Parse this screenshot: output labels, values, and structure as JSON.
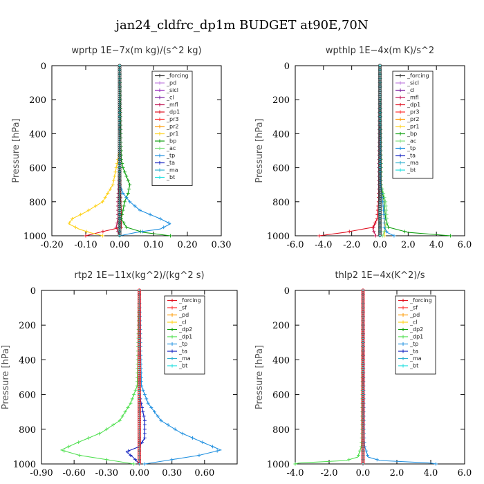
{
  "figure_title": "jan24_cldfrc_dp1m  BUDGET at90E,70N",
  "chart_data": [
    {
      "type": "line",
      "title": "wprtp  1E−7x(m kg)/(s^2 kg)",
      "ylabel": "Pressure [hPa]",
      "xlim": [
        -0.2,
        0.3
      ],
      "ylim": [
        1000,
        0
      ],
      "xticks": [
        "-0.20",
        "-0.10",
        "0.00",
        "0.10",
        "0.20",
        "0.30"
      ],
      "xtick_values": [
        -0.2,
        -0.1,
        0.0,
        0.1,
        0.2,
        0.3
      ],
      "yticks": [
        "0",
        "200",
        "400",
        "600",
        "800",
        "1000"
      ],
      "ytick_values": [
        0,
        200,
        400,
        600,
        800,
        1000
      ],
      "legend": [
        "_forcing",
        "_pd",
        "_sicl",
        "_cl",
        "_mfl",
        "_dp1",
        "_pr3",
        "_pr2",
        "_pr1",
        "_bp",
        "_ac",
        "_tp",
        "_ta",
        "_ma",
        "_bt"
      ],
      "series": [
        {
          "name": "_forcing",
          "color": "#333333",
          "p": [
            0,
            1000
          ],
          "v": [
            0.0,
            0.0
          ]
        },
        {
          "name": "_pd",
          "color": "#c080e0",
          "p": [
            0,
            1000
          ],
          "v": [
            0.0,
            0.0
          ]
        },
        {
          "name": "_sicl",
          "color": "#9b30c0",
          "p": [
            0,
            1000
          ],
          "v": [
            0.0,
            0.0
          ]
        },
        {
          "name": "_cl",
          "color": "#7a1fa0",
          "p": [
            0,
            1000
          ],
          "v": [
            0.0,
            0.0
          ]
        },
        {
          "name": "_mfl",
          "color": "#c01050",
          "p": [
            0,
            600,
            800,
            900,
            950,
            1000
          ],
          "v": [
            0.0,
            0.0,
            -0.005,
            -0.005,
            -0.01,
            0.0
          ]
        },
        {
          "name": "_dp1",
          "color": "#e01020",
          "p": [
            0,
            600,
            750,
            850,
            950,
            980,
            1000
          ],
          "v": [
            0.0,
            0.0,
            0.002,
            0.005,
            0.005,
            -0.06,
            -0.1
          ]
        },
        {
          "name": "_pr3",
          "color": "#ff3030",
          "p": [
            0,
            1000
          ],
          "v": [
            0.0,
            0.0
          ]
        },
        {
          "name": "_pr2",
          "color": "#ff9900",
          "p": [
            0,
            1000
          ],
          "v": [
            0.0,
            0.0
          ]
        },
        {
          "name": "_pr1",
          "color": "#ffd21a",
          "p": [
            0,
            500,
            600,
            700,
            800,
            860,
            900,
            930,
            960,
            980,
            1000
          ],
          "v": [
            0.0,
            0.0,
            -0.01,
            -0.02,
            -0.05,
            -0.1,
            -0.14,
            -0.15,
            -0.12,
            -0.09,
            -0.05
          ]
        },
        {
          "name": "_bp",
          "color": "#10a010",
          "p": [
            0,
            550,
            600,
            650,
            700,
            750,
            800,
            850,
            900,
            950,
            980,
            1000
          ],
          "v": [
            0.0,
            0.005,
            0.01,
            0.02,
            0.03,
            0.025,
            0.015,
            0.01,
            0.005,
            0.02,
            0.07,
            0.15
          ]
        },
        {
          "name": "_ac",
          "color": "#80e080",
          "p": [
            0,
            1000
          ],
          "v": [
            0.0,
            0.0
          ]
        },
        {
          "name": "_tp",
          "color": "#2090e0",
          "p": [
            0,
            700,
            750,
            800,
            850,
            900,
            930,
            960,
            980,
            1000
          ],
          "v": [
            0.0,
            0.0,
            0.01,
            0.03,
            0.06,
            0.12,
            0.15,
            0.12,
            0.05,
            0.0
          ]
        },
        {
          "name": "_ta",
          "color": "#1020c0",
          "p": [
            0,
            1000
          ],
          "v": [
            0.0,
            0.0
          ]
        },
        {
          "name": "_ma",
          "color": "#30b0d0",
          "p": [
            0,
            1000
          ],
          "v": [
            0.0,
            0.0
          ]
        },
        {
          "name": "_bt",
          "color": "#20e0e0",
          "p": [
            0,
            1000
          ],
          "v": [
            0.0,
            0.0
          ]
        }
      ]
    },
    {
      "type": "line",
      "title": "wpthlp  1E−4x(m K)/s^2",
      "ylabel": "Pressure [hPa]",
      "xlim": [
        -6.0,
        6.0
      ],
      "ylim": [
        1000,
        0
      ],
      "xticks": [
        "-6.0",
        "-4.0",
        "-2.0",
        "0.0",
        "2.0",
        "4.0",
        "6.0"
      ],
      "xtick_values": [
        -6,
        -4,
        -2,
        0,
        2,
        4,
        6
      ],
      "yticks": [
        "0",
        "200",
        "400",
        "600",
        "800",
        "1000"
      ],
      "ytick_values": [
        0,
        200,
        400,
        600,
        800,
        1000
      ],
      "legend": [
        "_forcing",
        "_sicl",
        "_cl",
        "_mfl",
        "_dp1",
        "_pr3",
        "_pr2",
        "_pr1",
        "_bp",
        "_ac",
        "_tp",
        "_ta",
        "_ma",
        "_bt"
      ],
      "series": [
        {
          "name": "_forcing",
          "color": "#333333",
          "p": [
            0,
            1000
          ],
          "v": [
            0.0,
            0.0
          ]
        },
        {
          "name": "_sicl",
          "color": "#c080e0",
          "p": [
            0,
            1000
          ],
          "v": [
            0.0,
            0.0
          ]
        },
        {
          "name": "_cl",
          "color": "#7a1fa0",
          "p": [
            0,
            1000
          ],
          "v": [
            0.0,
            0.0
          ]
        },
        {
          "name": "_mfl",
          "color": "#c01050",
          "p": [
            0,
            800,
            900,
            960,
            1000
          ],
          "v": [
            0.0,
            -0.1,
            -0.2,
            -0.5,
            -0.3
          ]
        },
        {
          "name": "_dp1",
          "color": "#e01020",
          "p": [
            0,
            700,
            800,
            900,
            950,
            980,
            1000
          ],
          "v": [
            0.0,
            0.0,
            -0.1,
            -0.2,
            -0.5,
            -2.5,
            -4.3
          ]
        },
        {
          "name": "_pr3",
          "color": "#ff3030",
          "p": [
            0,
            1000
          ],
          "v": [
            0.0,
            0.0
          ]
        },
        {
          "name": "_pr2",
          "color": "#ff9900",
          "p": [
            0,
            1000
          ],
          "v": [
            0.0,
            0.0
          ]
        },
        {
          "name": "_pr1",
          "color": "#ffd21a",
          "p": [
            0,
            700,
            800,
            900,
            950,
            1000
          ],
          "v": [
            0.0,
            0.1,
            0.2,
            0.3,
            0.4,
            0.3
          ]
        },
        {
          "name": "_bp",
          "color": "#10a010",
          "p": [
            0,
            700,
            800,
            900,
            950,
            980,
            1000
          ],
          "v": [
            0.0,
            0.1,
            0.3,
            0.4,
            0.6,
            2.0,
            5.0
          ]
        },
        {
          "name": "_ac",
          "color": "#80e080",
          "p": [
            0,
            700,
            800,
            900,
            950,
            1000
          ],
          "v": [
            0.0,
            0.1,
            0.4,
            0.5,
            0.4,
            0.2
          ]
        },
        {
          "name": "_tp",
          "color": "#2090e0",
          "p": [
            0,
            700,
            800,
            900,
            950,
            980,
            1000
          ],
          "v": [
            0.0,
            0.05,
            0.2,
            0.3,
            0.3,
            0.5,
            1.0
          ]
        },
        {
          "name": "_ta",
          "color": "#1020c0",
          "p": [
            0,
            1000
          ],
          "v": [
            0.0,
            0.0
          ]
        },
        {
          "name": "_ma",
          "color": "#30b0d0",
          "p": [
            0,
            1000
          ],
          "v": [
            0.0,
            0.0
          ]
        },
        {
          "name": "_bt",
          "color": "#20e0e0",
          "p": [
            0,
            1000
          ],
          "v": [
            0.0,
            0.0
          ]
        }
      ]
    },
    {
      "type": "line",
      "title": "rtp2  1E−11x(kg^2)/(kg^2 s)",
      "ylabel": "Pressure [hPa]",
      "xlim": [
        -0.9,
        0.9
      ],
      "ylim": [
        1000,
        0
      ],
      "xticks": [
        "-0.90",
        "-0.60",
        "-0.30",
        "0.00",
        "0.30",
        "0.60"
      ],
      "xtick_values": [
        -0.9,
        -0.6,
        -0.3,
        0.0,
        0.3,
        0.6
      ],
      "yticks": [
        "0",
        "200",
        "400",
        "600",
        "800",
        "1000"
      ],
      "ytick_values": [
        0,
        200,
        400,
        600,
        800,
        1000
      ],
      "legend": [
        "_forcing",
        "_sf",
        "_pd",
        "_cl",
        "_dp2",
        "_dp1",
        "_tp",
        "_ta",
        "_ma",
        "_bt"
      ],
      "series": [
        {
          "name": "_forcing",
          "color": "#e01020",
          "p": [
            0,
            1000
          ],
          "v": [
            0.0,
            0.0
          ]
        },
        {
          "name": "_sf",
          "color": "#ff3030",
          "p": [
            0,
            1000
          ],
          "v": [
            0.0,
            0.0
          ]
        },
        {
          "name": "_pd",
          "color": "#ff9900",
          "p": [
            0,
            1000
          ],
          "v": [
            0.0,
            0.0
          ]
        },
        {
          "name": "_cl",
          "color": "#ffd21a",
          "p": [
            0,
            1000
          ],
          "v": [
            0.0,
            0.0
          ]
        },
        {
          "name": "_dp2",
          "color": "#10a010",
          "p": [
            0,
            1000
          ],
          "v": [
            0.0,
            0.0
          ]
        },
        {
          "name": "_dp1",
          "color": "#50e050",
          "p": [
            0,
            550,
            650,
            750,
            820,
            880,
            920,
            950,
            980,
            1000
          ],
          "v": [
            0.0,
            -0.02,
            -0.08,
            -0.18,
            -0.35,
            -0.58,
            -0.72,
            -0.55,
            -0.25,
            -0.05
          ]
        },
        {
          "name": "_tp",
          "color": "#2090e0",
          "p": [
            0,
            550,
            650,
            750,
            820,
            880,
            920,
            950,
            980,
            1000
          ],
          "v": [
            0.0,
            0.02,
            0.08,
            0.2,
            0.38,
            0.6,
            0.75,
            0.55,
            0.25,
            0.05
          ]
        },
        {
          "name": "_ta",
          "color": "#1020c0",
          "p": [
            0,
            600,
            750,
            850,
            900,
            930,
            960,
            1000
          ],
          "v": [
            0.0,
            0.0,
            0.05,
            0.05,
            0.0,
            -0.12,
            -0.06,
            0.0
          ]
        },
        {
          "name": "_ma",
          "color": "#30b0d0",
          "p": [
            0,
            1000
          ],
          "v": [
            0.0,
            0.0
          ]
        },
        {
          "name": "_bt",
          "color": "#20e0e0",
          "p": [
            0,
            1000
          ],
          "v": [
            0.0,
            0.0
          ]
        }
      ]
    },
    {
      "type": "line",
      "title": "thlp2  1E−4x(K^2)/s",
      "ylabel": "Pressure [hPa]",
      "xlim": [
        -4.0,
        6.0
      ],
      "ylim": [
        1000,
        0
      ],
      "xticks": [
        "-4.0",
        "-2.0",
        "0.0",
        "2.0",
        "4.0",
        "6.0"
      ],
      "xtick_values": [
        -4,
        -2,
        0,
        2,
        4,
        6
      ],
      "yticks": [
        "0",
        "200",
        "400",
        "600",
        "800",
        "1000"
      ],
      "ytick_values": [
        0,
        200,
        400,
        600,
        800,
        1000
      ],
      "legend": [
        "_forcing",
        "_sf",
        "_pd",
        "_cl",
        "_dp2",
        "_dp1",
        "_tp",
        "_ta",
        "_ma",
        "_bt"
      ],
      "series": [
        {
          "name": "_forcing",
          "color": "#e01020",
          "p": [
            0,
            1000
          ],
          "v": [
            0.0,
            0.0
          ]
        },
        {
          "name": "_sf",
          "color": "#ff3030",
          "p": [
            0,
            1000
          ],
          "v": [
            0.0,
            0.0
          ]
        },
        {
          "name": "_pd",
          "color": "#ff9900",
          "p": [
            0,
            1000
          ],
          "v": [
            0.0,
            0.0
          ]
        },
        {
          "name": "_cl",
          "color": "#ffd21a",
          "p": [
            0,
            1000
          ],
          "v": [
            0.0,
            0.0
          ]
        },
        {
          "name": "_dp2",
          "color": "#10a010",
          "p": [
            0,
            1000
          ],
          "v": [
            0.0,
            0.0
          ]
        },
        {
          "name": "_dp1",
          "color": "#50e050",
          "p": [
            0,
            800,
            900,
            960,
            980,
            995,
            1000
          ],
          "v": [
            0.0,
            -0.05,
            -0.1,
            -0.3,
            -1.0,
            -3.8,
            -4.0
          ]
        },
        {
          "name": "_tp",
          "color": "#2090e0",
          "p": [
            0,
            800,
            900,
            960,
            980,
            995,
            1000
          ],
          "v": [
            0.0,
            0.05,
            0.1,
            0.3,
            1.0,
            4.0,
            4.3
          ]
        },
        {
          "name": "_ta",
          "color": "#1020c0",
          "p": [
            0,
            1000
          ],
          "v": [
            0.0,
            0.0
          ]
        },
        {
          "name": "_ma",
          "color": "#30b0d0",
          "p": [
            0,
            1000
          ],
          "v": [
            0.0,
            0.0
          ]
        },
        {
          "name": "_bt",
          "color": "#20e0e0",
          "p": [
            0,
            1000
          ],
          "v": [
            0.0,
            0.0
          ]
        }
      ]
    }
  ]
}
